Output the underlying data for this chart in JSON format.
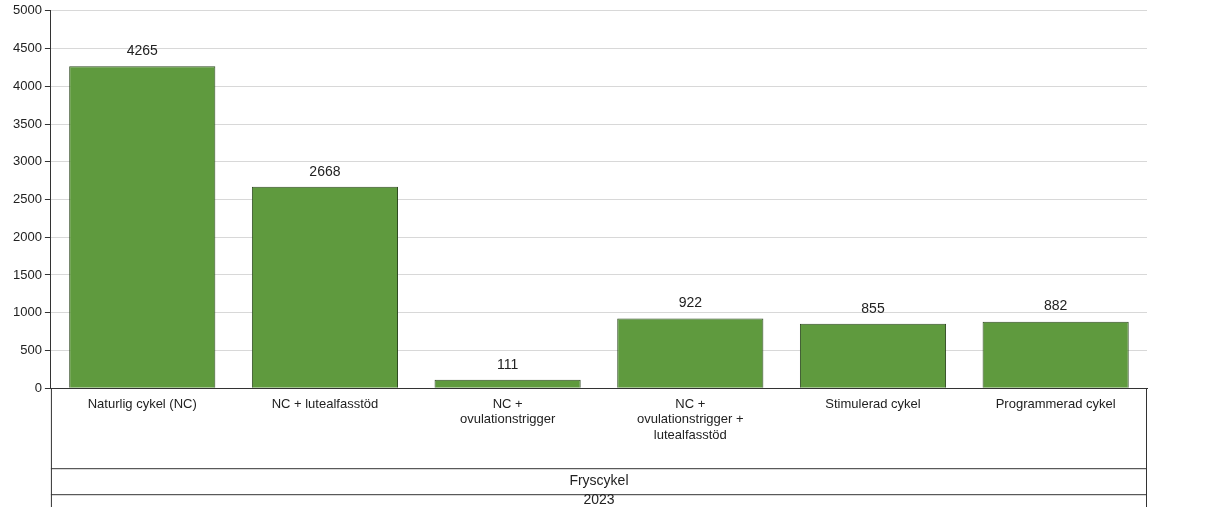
{
  "chart_data": {
    "type": "bar",
    "categories": [
      "Naturlig cykel (NC)",
      "NC + lutealfasstöd",
      "NC + ovulationstrigger",
      "NC + ovulationstrigger + lutealfasstöd",
      "Stimulerad cykel",
      "Programmerad cykel"
    ],
    "values": [
      4265,
      2668,
      111,
      922,
      855,
      882
    ],
    "color": "#5f9a3e",
    "xlabel": "Fryscykel",
    "annotations": [
      "2023"
    ],
    "ylim": [
      0,
      5000
    ],
    "yticks": [
      0,
      500,
      1000,
      1500,
      2000,
      2500,
      3000,
      3500,
      4000,
      4500,
      5000
    ],
    "grid": "y",
    "data_labels": true,
    "legend": false
  }
}
